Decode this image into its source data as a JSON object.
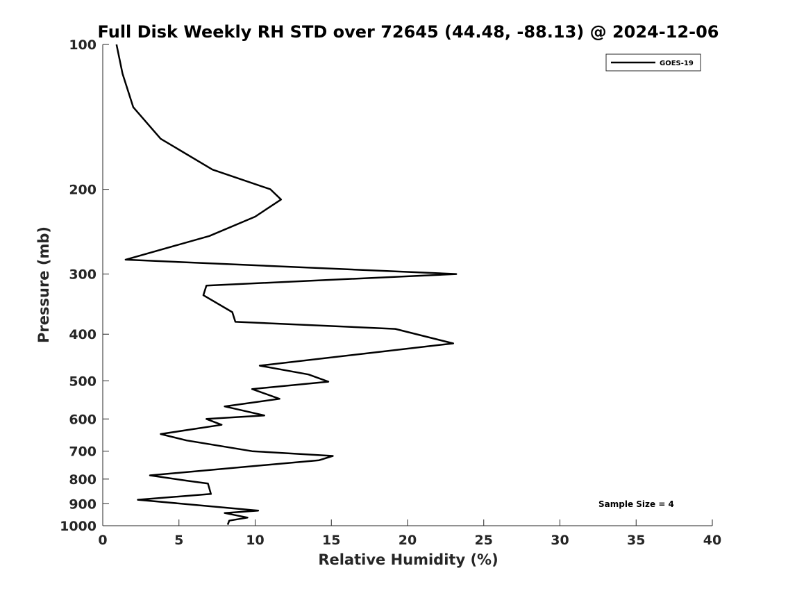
{
  "chart_data": {
    "type": "line",
    "title": "Full Disk Weekly RH STD over 72645 (44.48, -88.13) @ 2024-12-06",
    "xlabel": "Relative Humidity (%)",
    "ylabel": "Pressure (mb)",
    "xlim": [
      0,
      40
    ],
    "ylim": [
      100,
      1000
    ],
    "y_scale": "log",
    "y_reversed": true,
    "x_ticks": [
      "0",
      "5",
      "10",
      "15",
      "20",
      "25",
      "30",
      "35",
      "40"
    ],
    "y_ticks": [
      "100",
      "200",
      "300",
      "400",
      "500",
      "600",
      "700",
      "800",
      "900",
      "1000"
    ],
    "grid": false,
    "legend": {
      "position": "top-right",
      "entries": [
        "GOES-19"
      ]
    },
    "annotation": "Sample Size = 4",
    "series": [
      {
        "name": "GOES-19",
        "color": "#000000",
        "points": [
          [
            0.9,
            100
          ],
          [
            1.3,
            115
          ],
          [
            2.0,
            135
          ],
          [
            3.8,
            157
          ],
          [
            7.2,
            182
          ],
          [
            11.0,
            200
          ],
          [
            11.7,
            210
          ],
          [
            10.0,
            228
          ],
          [
            7.0,
            250
          ],
          [
            1.5,
            280
          ],
          [
            23.2,
            300
          ],
          [
            6.8,
            317
          ],
          [
            6.6,
            332
          ],
          [
            8.5,
            360
          ],
          [
            8.7,
            377
          ],
          [
            19.2,
            390
          ],
          [
            23.0,
            418
          ],
          [
            10.3,
            465
          ],
          [
            13.5,
            485
          ],
          [
            14.8,
            502
          ],
          [
            9.8,
            520
          ],
          [
            11.6,
            545
          ],
          [
            8.0,
            565
          ],
          [
            10.6,
            590
          ],
          [
            6.8,
            600
          ],
          [
            7.8,
            617
          ],
          [
            3.8,
            645
          ],
          [
            5.5,
            665
          ],
          [
            9.8,
            700
          ],
          [
            15.1,
            716
          ],
          [
            14.2,
            731
          ],
          [
            3.1,
            786
          ],
          [
            5.5,
            806
          ],
          [
            6.9,
            817
          ],
          [
            7.1,
            859
          ],
          [
            2.3,
            883
          ],
          [
            10.2,
            930
          ],
          [
            8.0,
            941
          ],
          [
            9.5,
            962
          ],
          [
            8.3,
            976
          ],
          [
            8.2,
            995
          ]
        ]
      }
    ]
  }
}
